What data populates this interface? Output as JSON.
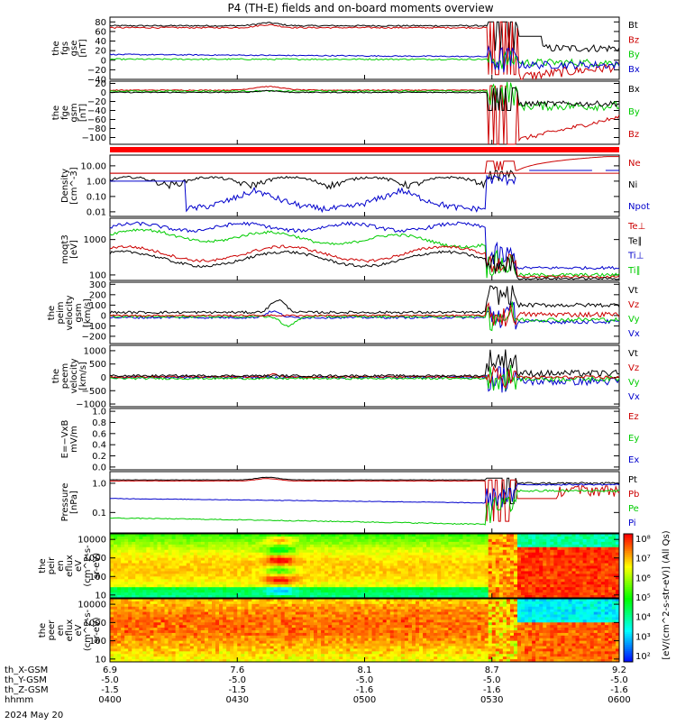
{
  "title": "P4 (TH-E) fields and on-board moments overview",
  "date_label": "2024 May 20",
  "ephemeris": {
    "row_labels": [
      "th_X-GSM",
      "th_Y-GSM",
      "th_Z-GSM",
      "hhmm"
    ],
    "columns": [
      [
        "6.9",
        "-5.0",
        "-1.5",
        "0400"
      ],
      [
        "7.6",
        "-5.0",
        "-1.5",
        "0430"
      ],
      [
        "8.1",
        "-5.0",
        "-1.6",
        "0500"
      ],
      [
        "8.7",
        "-5.0",
        "-1.6",
        "0530"
      ],
      [
        "9.2",
        "-5.0",
        "-1.6",
        "0600"
      ]
    ]
  },
  "colorbar_label": "[eV/(cm^2-s-str-eV)] (All Qs)",
  "colors": {
    "black": "#000000",
    "red": "#cc0000",
    "green": "#00cc00",
    "blue": "#0000cc",
    "bar_red": "#ff0000"
  },
  "chart_data": [
    {
      "type": "line",
      "ylabel_lines": [
        "the",
        "fgs",
        "gse",
        "[nT]"
      ],
      "ylim": [
        -40,
        90
      ],
      "yticks": [
        80,
        60,
        40,
        20,
        0,
        -20,
        -40
      ],
      "ytick_labels": [
        "80",
        "60",
        "40",
        "20",
        "0",
        "−20",
        "−40"
      ],
      "log": false,
      "legend": [
        {
          "label": "Bt",
          "color": "#000000"
        },
        {
          "label": "Bz",
          "color": "#cc0000"
        },
        {
          "label": "By",
          "color": "#00cc00"
        },
        {
          "label": "Bx",
          "color": "#0000cc"
        }
      ]
    },
    {
      "type": "line",
      "ylabel_lines": [
        "the",
        "fge",
        "gsm",
        "[nT]"
      ],
      "ylim": [
        -115,
        25
      ],
      "yticks": [
        20,
        0,
        -20,
        -40,
        -60,
        -80,
        -100
      ],
      "ytick_labels": [
        "20",
        "0",
        "−20",
        "−40",
        "−60",
        "−80",
        "−100"
      ],
      "log": false,
      "legend": [
        {
          "label": "Bx",
          "color": "#000000"
        },
        {
          "label": "By",
          "color": "#00cc00"
        },
        {
          "label": "Bz",
          "color": "#cc0000"
        }
      ]
    },
    {
      "type": "line",
      "ylabel_lines": [
        "Density",
        "[cm^-3]"
      ],
      "ylim": [
        0.005,
        50
      ],
      "yticks": [
        10,
        1,
        0.1,
        0.01
      ],
      "ytick_labels": [
        "10.00",
        "1.00",
        "0.10",
        "0.01"
      ],
      "log": true,
      "legend": [
        {
          "label": "Ne",
          "color": "#cc0000"
        },
        {
          "label": "Ni",
          "color": "#000000"
        },
        {
          "label": "Npot",
          "color": "#0000cc"
        }
      ]
    },
    {
      "type": "line",
      "ylabel_lines": [
        "moqt3",
        "[eV]"
      ],
      "ylim": [
        70,
        4000
      ],
      "yticks": [
        1000,
        100
      ],
      "ytick_labels": [
        "1000",
        "100"
      ],
      "log": true,
      "legend": [
        {
          "label": "Te⊥",
          "color": "#cc0000"
        },
        {
          "label": "Te∥",
          "color": "#000000"
        },
        {
          "label": "Ti⊥",
          "color": "#0000cc"
        },
        {
          "label": "Ti∥",
          "color": "#00cc00"
        }
      ]
    },
    {
      "type": "line",
      "ylabel_lines": [
        "the",
        "peim",
        "velocity",
        "gsm",
        "[km/s]"
      ],
      "ylim": [
        -270,
        320
      ],
      "yticks": [
        300,
        200,
        100,
        0,
        -100,
        -200
      ],
      "ytick_labels": [
        "300",
        "200",
        "100",
        "0",
        "−100",
        "−200"
      ],
      "log": false,
      "legend": [
        {
          "label": "Vt",
          "color": "#000000"
        },
        {
          "label": "Vz",
          "color": "#cc0000"
        },
        {
          "label": "Vy",
          "color": "#00cc00"
        },
        {
          "label": "Vx",
          "color": "#0000cc"
        }
      ]
    },
    {
      "type": "line",
      "ylabel_lines": [
        "the",
        "peem",
        "velocity",
        "[km/s]"
      ],
      "ylim": [
        -1100,
        1200
      ],
      "yticks": [
        1000,
        500,
        0,
        -500,
        -1000
      ],
      "ytick_labels": [
        "1000",
        "500",
        "0",
        "−500",
        "−1000"
      ],
      "log": false,
      "legend": [
        {
          "label": "Vt",
          "color": "#000000"
        },
        {
          "label": "Vz",
          "color": "#cc0000"
        },
        {
          "label": "Vy",
          "color": "#00cc00"
        },
        {
          "label": "Vx",
          "color": "#0000cc"
        }
      ]
    },
    {
      "type": "line",
      "ylabel_lines": [
        "E=−VxB",
        "mV/m"
      ],
      "ylim": [
        -0.05,
        1.05
      ],
      "yticks": [
        1.0,
        0.8,
        0.6,
        0.4,
        0.2,
        0.0
      ],
      "ytick_labels": [
        "1.0",
        "0.8",
        "0.6",
        "0.4",
        "0.2",
        "0.0"
      ],
      "log": false,
      "legend": [
        {
          "label": "Ez",
          "color": "#cc0000"
        },
        {
          "label": "Ey",
          "color": "#00cc00"
        },
        {
          "label": "Ex",
          "color": "#0000cc"
        }
      ]
    },
    {
      "type": "line",
      "ylabel_lines": [
        "Pressure",
        "[nPa]"
      ],
      "ylim": [
        0.02,
        2.5
      ],
      "yticks": [
        1.0,
        0.1
      ],
      "ytick_labels": [
        "1.0",
        "0.1"
      ],
      "log": true,
      "legend": [
        {
          "label": "Pt",
          "color": "#000000"
        },
        {
          "label": "Pb",
          "color": "#cc0000"
        },
        {
          "label": "Pe",
          "color": "#00cc00"
        },
        {
          "label": "Pi",
          "color": "#0000cc"
        }
      ]
    },
    {
      "type": "heatmap",
      "ylabel_lines": [
        "the",
        "peir",
        "en",
        "eflux",
        "eV",
        "(cm^2-s-",
        "sr-eV)"
      ],
      "ylim": [
        7,
        20000
      ],
      "yticks": [
        10000,
        1000,
        100,
        10
      ],
      "ytick_labels": [
        "10000",
        "1000",
        "100",
        "10"
      ],
      "log": true,
      "legend": []
    },
    {
      "type": "heatmap",
      "ylabel_lines": [
        "the",
        "peer",
        "en",
        "eflux",
        "eV",
        "(cm^2-s-",
        "sr-eV)"
      ],
      "ylim": [
        7,
        20000
      ],
      "yticks": [
        10000,
        1000,
        100,
        10
      ],
      "ytick_labels": [
        "10000",
        "1000",
        "100",
        "10"
      ],
      "log": true,
      "legend": []
    }
  ],
  "colorbar_ticks": [
    "10^8",
    "10^7",
    "10^6",
    "10^5",
    "10^4",
    "10^3",
    "10^2"
  ],
  "colorbar_ticks_display": [
    "10⁸",
    "10⁷",
    "10⁶",
    "10⁵",
    "10⁴",
    "10³",
    "10²"
  ]
}
